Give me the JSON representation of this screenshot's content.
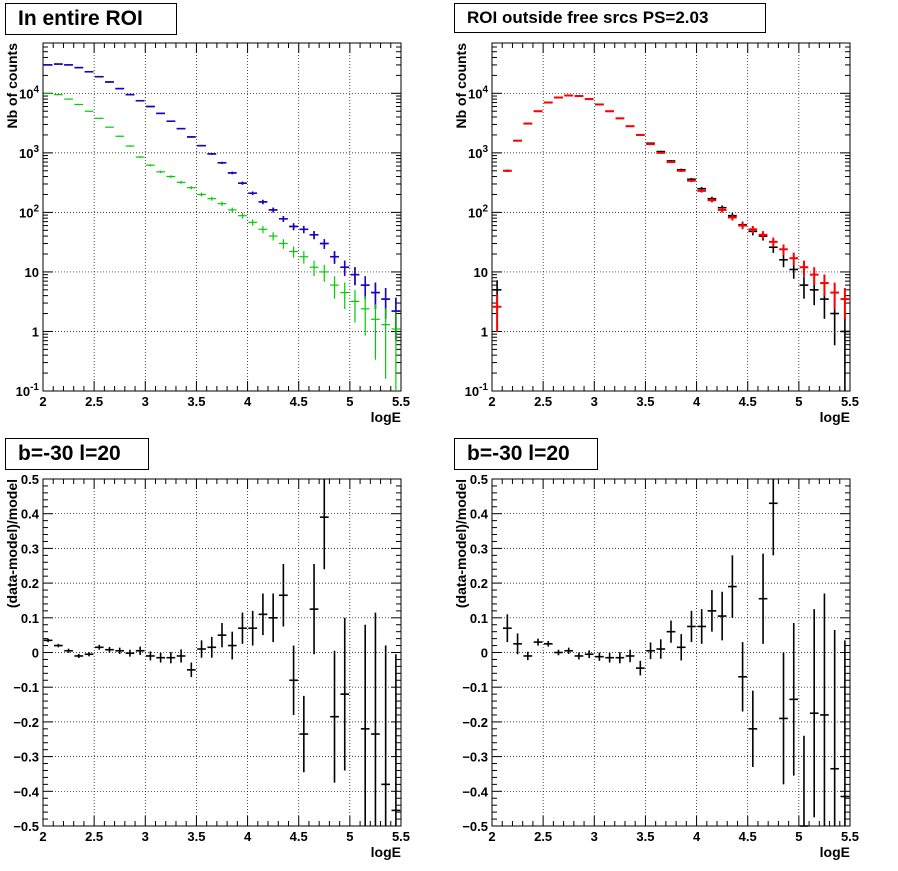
{
  "colors": {
    "data": "#000000",
    "model": "#ff0000",
    "total": "#0000ff",
    "component": "#00cc00",
    "grid": "#000000"
  },
  "chart_data": [
    {
      "type": "scatter",
      "title": "In entire ROI",
      "xlabel": "logE",
      "ylabel": "Nb of counts",
      "xlim": [
        2,
        5.5
      ],
      "ylim": [
        0.1,
        70000
      ],
      "yscale": "log",
      "grid": true,
      "xticks": [
        "2",
        "2.5",
        "3",
        "3.5",
        "4",
        "4.5",
        "5",
        "5.5"
      ],
      "yticks": [
        {
          "v": 0.1,
          "base": "10",
          "exp": "-1"
        },
        {
          "v": 1,
          "text": "1"
        },
        {
          "v": 10,
          "text": "10"
        },
        {
          "v": 100,
          "base": "10",
          "exp": "2"
        },
        {
          "v": 1000,
          "base": "10",
          "exp": "3"
        },
        {
          "v": 10000,
          "base": "10",
          "exp": "4"
        }
      ],
      "x": [
        2.05,
        2.15,
        2.25,
        2.35,
        2.45,
        2.55,
        2.65,
        2.75,
        2.85,
        2.95,
        3.05,
        3.15,
        3.25,
        3.35,
        3.45,
        3.55,
        3.65,
        3.75,
        3.85,
        3.95,
        4.05,
        4.15,
        4.25,
        4.35,
        4.45,
        4.55,
        4.65,
        4.75,
        4.85,
        4.95,
        5.05,
        5.15,
        5.25,
        5.35,
        5.45
      ],
      "series": [
        {
          "color": "#000000",
          "values": [
            30000,
            31000,
            30000,
            27000,
            23000,
            19000,
            15500,
            12000,
            9500,
            7500,
            6000,
            4600,
            3400,
            2550,
            1850,
            1320,
            960,
            680,
            460,
            310,
            210,
            150,
            110,
            78,
            58,
            52,
            42,
            30,
            18,
            12,
            9,
            6,
            4.5,
            3.5,
            2.2
          ]
        },
        {
          "color": "#ff0000",
          "values": [
            30000,
            31000,
            30000,
            27000,
            23000,
            19000,
            15500,
            12000,
            9500,
            7500,
            6000,
            4600,
            3400,
            2550,
            1850,
            1320,
            960,
            680,
            460,
            310,
            210,
            150,
            110,
            78,
            58,
            52,
            42,
            30,
            18,
            12,
            9,
            6,
            4.5,
            3.5,
            2.2
          ]
        },
        {
          "color": "#0000ff",
          "values": [
            30000,
            31000,
            30000,
            27000,
            23000,
            19000,
            15500,
            12000,
            9500,
            7500,
            6000,
            4600,
            3400,
            2550,
            1850,
            1320,
            960,
            680,
            460,
            310,
            210,
            150,
            110,
            78,
            58,
            52,
            42,
            30,
            18,
            12,
            9,
            6,
            4.5,
            3.5,
            2.2
          ]
        },
        {
          "color": "#00cc00",
          "values": [
            10000,
            9500,
            8000,
            6500,
            5000,
            3800,
            2700,
            1900,
            1300,
            850,
            620,
            480,
            400,
            320,
            260,
            200,
            170,
            140,
            110,
            88,
            68,
            52,
            40,
            30,
            22,
            18,
            12,
            10,
            6,
            4.5,
            3.2,
            2.4,
            1.6,
            1.3,
            1.1
          ]
        }
      ]
    },
    {
      "type": "scatter",
      "title": "ROI outside free srcs PS=2.03",
      "xlabel": "logE",
      "ylabel": "Nb of counts",
      "xlim": [
        2,
        5.5
      ],
      "ylim": [
        0.1,
        70000
      ],
      "yscale": "log",
      "grid": true,
      "xticks": [
        "2",
        "2.5",
        "3",
        "3.5",
        "4",
        "4.5",
        "5",
        "5.5"
      ],
      "yticks": [
        {
          "v": 0.1,
          "base": "10",
          "exp": "-1"
        },
        {
          "v": 1,
          "text": "1"
        },
        {
          "v": 10,
          "text": "10"
        },
        {
          "v": 100,
          "base": "10",
          "exp": "2"
        },
        {
          "v": 1000,
          "base": "10",
          "exp": "3"
        },
        {
          "v": 10000,
          "base": "10",
          "exp": "4"
        }
      ],
      "x": [
        2.05,
        2.15,
        2.25,
        2.35,
        2.45,
        2.55,
        2.65,
        2.75,
        2.85,
        2.95,
        3.05,
        3.15,
        3.25,
        3.35,
        3.45,
        3.55,
        3.65,
        3.75,
        3.85,
        3.95,
        4.05,
        4.15,
        4.25,
        4.35,
        4.45,
        4.55,
        4.65,
        4.75,
        4.85,
        4.95,
        5.05,
        5.15,
        5.25,
        5.35,
        5.45
      ],
      "series": [
        {
          "color": "#000000",
          "values": [
            5,
            500,
            1600,
            3100,
            5000,
            7000,
            8500,
            9200,
            9000,
            8000,
            6500,
            5000,
            3800,
            2800,
            2000,
            1450,
            1050,
            730,
            520,
            360,
            250,
            170,
            120,
            88,
            62,
            48,
            40,
            26,
            16,
            11,
            6,
            5,
            3.5,
            2,
            1
          ]
        },
        {
          "color": "#ff0000",
          "values": [
            2.6,
            500,
            1600,
            3100,
            5000,
            7000,
            8500,
            9200,
            9000,
            8000,
            6500,
            5000,
            3800,
            2800,
            2000,
            1400,
            1000,
            700,
            500,
            340,
            230,
            160,
            110,
            82,
            60,
            52,
            42,
            32,
            24,
            17,
            12,
            9,
            6.5,
            4.5,
            3.5
          ]
        }
      ]
    },
    {
      "type": "scatter",
      "title": "b=-30 l=20",
      "xlabel": "logE",
      "ylabel": "(data-model)/model",
      "xlim": [
        2,
        5.5
      ],
      "ylim": [
        -0.5,
        0.5
      ],
      "grid": true,
      "xticks": [
        "2",
        "2.5",
        "3",
        "3.5",
        "4",
        "4.5",
        "5",
        "5.5"
      ],
      "yticks": [
        {
          "v": -0.5,
          "text": "−0.5"
        },
        {
          "v": -0.4,
          "text": "−0.4"
        },
        {
          "v": -0.3,
          "text": "−0.3"
        },
        {
          "v": -0.2,
          "text": "−0.2"
        },
        {
          "v": -0.1,
          "text": "−0.1"
        },
        {
          "v": 0,
          "text": "0"
        },
        {
          "v": 0.1,
          "text": "0.1"
        },
        {
          "v": 0.2,
          "text": "0.2"
        },
        {
          "v": 0.3,
          "text": "0.3"
        },
        {
          "v": 0.4,
          "text": "0.4"
        },
        {
          "v": 0.5,
          "text": "0.5"
        }
      ],
      "x": [
        2.05,
        2.15,
        2.25,
        2.35,
        2.45,
        2.55,
        2.65,
        2.75,
        2.85,
        2.95,
        3.05,
        3.15,
        3.25,
        3.35,
        3.45,
        3.55,
        3.65,
        3.75,
        3.85,
        3.95,
        4.05,
        4.15,
        4.25,
        4.35,
        4.45,
        4.55,
        4.65,
        4.75,
        4.85,
        4.95,
        5.05,
        5.15,
        5.25,
        5.35,
        5.45
      ],
      "series": [
        {
          "color": "#000000",
          "values": [
            0.035,
            0.02,
            0.005,
            -0.01,
            -0.005,
            0.015,
            0.008,
            0.005,
            -0.002,
            0.005,
            -0.01,
            -0.015,
            -0.015,
            -0.01,
            -0.05,
            0.01,
            0.015,
            0.05,
            0.02,
            0.07,
            0.07,
            0.11,
            0.1,
            0.165,
            -0.08,
            -0.235,
            0.125,
            0.39,
            -0.185,
            -0.12,
            null,
            -0.22,
            -0.235,
            -0.38,
            -0.455
          ],
          "errors": [
            0.005,
            0.005,
            0.006,
            0.006,
            0.006,
            0.007,
            0.008,
            0.009,
            0.01,
            0.012,
            0.013,
            0.014,
            0.016,
            0.019,
            0.021,
            0.025,
            0.03,
            0.035,
            0.04,
            0.045,
            0.05,
            0.06,
            0.07,
            0.09,
            0.1,
            0.11,
            0.13,
            0.15,
            0.19,
            0.22,
            0.26,
            0.3,
            0.35,
            0.4,
            0.45
          ]
        }
      ]
    },
    {
      "type": "scatter",
      "title": "b=-30 l=20",
      "xlabel": "logE",
      "ylabel": "(data-model)/model",
      "xlim": [
        2,
        5.5
      ],
      "ylim": [
        -0.5,
        0.5
      ],
      "grid": true,
      "xticks": [
        "2",
        "2.5",
        "3",
        "3.5",
        "4",
        "4.5",
        "5",
        "5.5"
      ],
      "yticks": [
        {
          "v": -0.5,
          "text": "−0.5"
        },
        {
          "v": -0.4,
          "text": "−0.4"
        },
        {
          "v": -0.3,
          "text": "−0.3"
        },
        {
          "v": -0.2,
          "text": "−0.2"
        },
        {
          "v": -0.1,
          "text": "−0.1"
        },
        {
          "v": 0,
          "text": "0"
        },
        {
          "v": 0.1,
          "text": "0.1"
        },
        {
          "v": 0.2,
          "text": "0.2"
        },
        {
          "v": 0.3,
          "text": "0.3"
        },
        {
          "v": 0.4,
          "text": "0.4"
        },
        {
          "v": 0.5,
          "text": "0.5"
        }
      ],
      "x": [
        2.05,
        2.15,
        2.25,
        2.35,
        2.45,
        2.55,
        2.65,
        2.75,
        2.85,
        2.95,
        3.05,
        3.15,
        3.25,
        3.35,
        3.45,
        3.55,
        3.65,
        3.75,
        3.85,
        3.95,
        4.05,
        4.15,
        4.25,
        4.35,
        4.45,
        4.55,
        4.65,
        4.75,
        4.85,
        4.95,
        5.05,
        5.15,
        5.25,
        5.35,
        5.45
      ],
      "series": [
        {
          "color": "#000000",
          "values": [
            null,
            0.07,
            0.025,
            -0.01,
            0.03,
            0.025,
            0,
            0.005,
            -0.01,
            -0.005,
            -0.012,
            -0.015,
            -0.015,
            -0.01,
            -0.045,
            0.005,
            0.01,
            0.06,
            0.015,
            0.075,
            0.075,
            0.12,
            0.105,
            0.19,
            -0.07,
            -0.22,
            0.155,
            0.43,
            -0.19,
            -0.135,
            -0.5,
            -0.175,
            -0.18,
            -0.335,
            -0.415
          ],
          "errors": [
            0.005,
            0.04,
            0.03,
            0.012,
            0.01,
            0.008,
            0.008,
            0.009,
            0.01,
            0.011,
            0.012,
            0.014,
            0.016,
            0.018,
            0.021,
            0.024,
            0.028,
            0.032,
            0.038,
            0.045,
            0.05,
            0.06,
            0.07,
            0.09,
            0.1,
            0.11,
            0.13,
            0.15,
            0.19,
            0.22,
            0.26,
            0.3,
            0.35,
            0.4,
            0.45
          ]
        }
      ]
    }
  ]
}
